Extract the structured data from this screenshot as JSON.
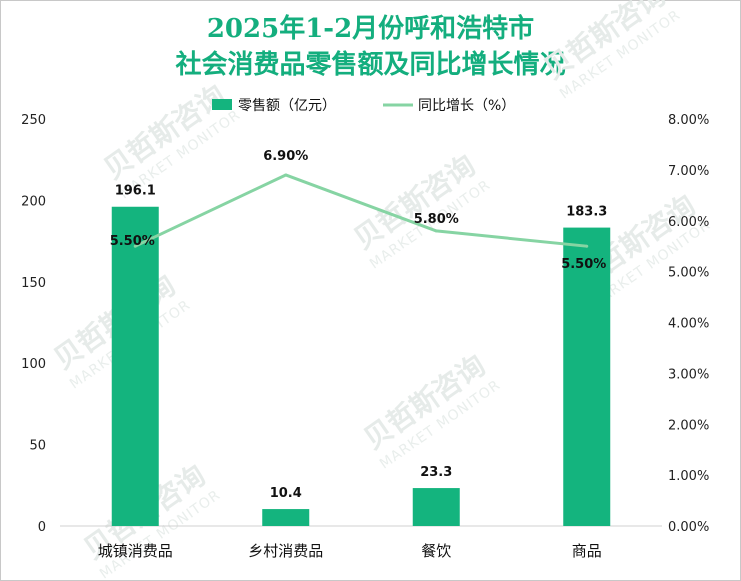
{
  "title_line1": "2025年1-2月份呼和浩特市",
  "title_line2": "社会消费品零售额及同比增长情况",
  "watermark": {
    "cn": "贝哲斯咨询",
    "en": "MARKET MONITOR"
  },
  "colors": {
    "bar": "#14b47e",
    "line": "#86d4a3",
    "title": "#14ae7e"
  },
  "chart_data": {
    "type": "bar+line",
    "title": "2025年1-2月份呼和浩特市社会消费品零售额及同比增长情况",
    "categories": [
      "城镇消费品",
      "乡村消费品",
      "餐饮",
      "商品"
    ],
    "series": [
      {
        "name": "零售额（亿元）",
        "type": "bar",
        "axis": "left",
        "values": [
          196.1,
          10.4,
          23.3,
          183.3
        ],
        "labels": [
          "196.1",
          "10.4",
          "23.3",
          "183.3"
        ]
      },
      {
        "name": "同比增长（%）",
        "type": "line",
        "axis": "right",
        "values": [
          5.5,
          6.9,
          5.8,
          5.5
        ],
        "labels": [
          "5.50%",
          "6.90%",
          "5.80%",
          "5.50%"
        ]
      }
    ],
    "y_left": {
      "min": 0,
      "max": 250,
      "ticks": [
        "0",
        "50",
        "100",
        "150",
        "200",
        "250"
      ]
    },
    "y_right": {
      "min": 0,
      "max": 8,
      "ticks": [
        "0.00%",
        "1.00%",
        "2.00%",
        "3.00%",
        "4.00%",
        "5.00%",
        "6.00%",
        "7.00%",
        "8.00%"
      ]
    },
    "legend_position": "top-center",
    "grid": false
  }
}
